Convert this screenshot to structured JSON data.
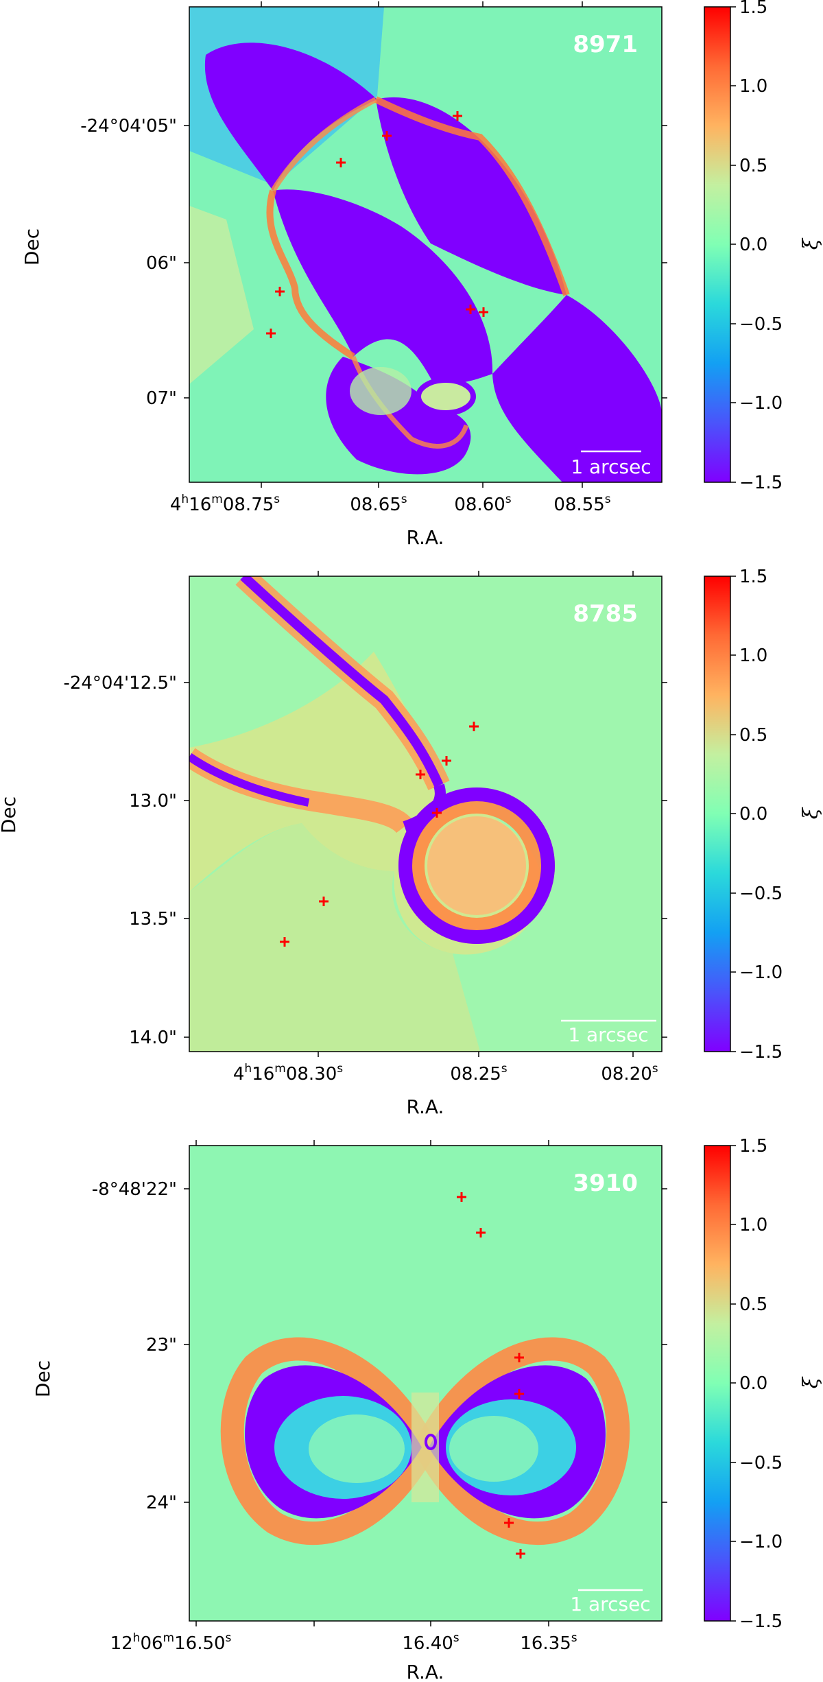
{
  "chart_data": [
    {
      "type": "heatmap",
      "id": "8971",
      "panel_label": "8971",
      "xlabel": "R.A.",
      "ylabel": "Dec",
      "x_ticks": [
        {
          "label": "4h16m08.75s",
          "h": "4",
          "m": "16",
          "s": "08.75"
        },
        {
          "label": "08.65s",
          "s": "08.65"
        },
        {
          "label": "08.60s",
          "s": "08.60"
        },
        {
          "label": "08.55s",
          "s": "08.55"
        }
      ],
      "y_ticks": [
        "-24°04'05\"",
        "06\"",
        "07\""
      ],
      "scale_bar_label": "1 arcsec",
      "markers": [
        {
          "ra": "08.614",
          "dec": "-24°04'04.92\""
        },
        {
          "ra": "08.647",
          "dec": "-24°04'05.07\""
        },
        {
          "ra": "08.682",
          "dec": "-24°04'05.27\""
        },
        {
          "ra": "08.717",
          "dec": "-24°04'06.22\""
        },
        {
          "ra": "08.721",
          "dec": "-24°04'06.53\""
        },
        {
          "ra": "08.606",
          "dec": "-24°04'06.35\""
        },
        {
          "ra": "08.600",
          "dec": "-24°04'06.37\""
        }
      ],
      "colorbar": {
        "label": "ξ",
        "range": [
          -1.5,
          1.5
        ],
        "ticks": [
          "1.5",
          "1.0",
          "0.5",
          "0.0",
          "−0.5",
          "−1.0",
          "−1.5"
        ],
        "colormap": "rainbow"
      }
    },
    {
      "type": "heatmap",
      "id": "8785",
      "panel_label": "8785",
      "xlabel": "R.A.",
      "ylabel": "Dec",
      "x_ticks": [
        {
          "label": "4h16m08.30s",
          "h": "4",
          "m": "16",
          "s": "08.30"
        },
        {
          "label": "08.25s",
          "s": "08.25"
        },
        {
          "label": "08.20s",
          "s": "08.20"
        }
      ],
      "y_ticks": [
        "-24°04'12.5\"",
        "13.0\"",
        "13.5\"",
        "14.0\""
      ],
      "scale_bar_label": "1 arcsec",
      "markers": [
        {
          "ra": "08.244",
          "dec": "-24°04'12.68\""
        },
        {
          "ra": "08.254",
          "dec": "-24°04'12.85\""
        },
        {
          "ra": "08.262",
          "dec": "-24°04'12.90\""
        },
        {
          "ra": "08.256",
          "dec": "-24°04'13.05\""
        },
        {
          "ra": "08.294",
          "dec": "-24°04'13.43\""
        },
        {
          "ra": "08.307",
          "dec": "-24°04'13.60\""
        }
      ],
      "colorbar": {
        "label": "ξ",
        "range": [
          -1.5,
          1.5
        ],
        "ticks": [
          "1.5",
          "1.0",
          "0.5",
          "0.0",
          "−0.5",
          "−1.0",
          "−1.5"
        ],
        "colormap": "rainbow"
      }
    },
    {
      "type": "heatmap",
      "id": "3910",
      "panel_label": "3910",
      "xlabel": "R.A.",
      "ylabel": "Dec",
      "x_ticks": [
        {
          "label": "12h06m16.50s",
          "h": "12",
          "m": "06",
          "s": "16.50"
        },
        {
          "label": "16.40s",
          "s": "16.40"
        },
        {
          "label": "16.35s",
          "s": "16.35"
        }
      ],
      "y_ticks": [
        "-8°48'22\"",
        "23\"",
        "24\""
      ],
      "scale_bar_label": "1 arcsec",
      "markers": [
        {
          "ra": "16.386",
          "dec": "-8°48'22.05\""
        },
        {
          "ra": "16.379",
          "dec": "-8°48'22.20\""
        },
        {
          "ra": "16.366",
          "dec": "-8°48'23.10\""
        },
        {
          "ra": "16.366",
          "dec": "-8°48'23.25\""
        },
        {
          "ra": "16.370",
          "dec": "-8°48'24.15\""
        },
        {
          "ra": "16.366",
          "dec": "-8°48'24.35\""
        }
      ],
      "colorbar": {
        "label": "ξ",
        "range": [
          -1.5,
          1.5
        ],
        "ticks": [
          "1.5",
          "1.0",
          "0.5",
          "0.0",
          "−0.5",
          "−1.0",
          "−1.5"
        ],
        "colormap": "rainbow"
      }
    }
  ]
}
